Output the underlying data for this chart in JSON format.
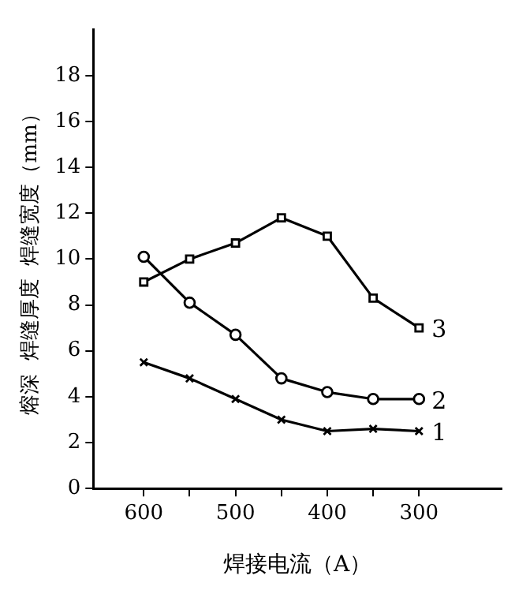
{
  "chart_data": {
    "type": "line",
    "xlabel": "焊接电流（A）",
    "ylabel": "熔深  焊缝厚度  焊缝宽度（mm）",
    "x": [
      600,
      550,
      500,
      450,
      400,
      350,
      300
    ],
    "xlim": [
      655,
      210
    ],
    "xticks": [
      600,
      {
        "value": 550,
        "label": null
      },
      500,
      {
        "value": 450,
        "label": null
      },
      400,
      {
        "value": 350,
        "label": null
      },
      300
    ],
    "ylim": [
      0,
      20
    ],
    "yticks": [
      0,
      2,
      4,
      6,
      8,
      10,
      12,
      14,
      16,
      18
    ],
    "grid": false,
    "legend": false,
    "line_style": "solid",
    "series": [
      {
        "name": "1",
        "color": "#000000",
        "marker": "cross",
        "values": [
          5.5,
          4.8,
          3.9,
          3.0,
          2.5,
          2.6,
          2.5
        ]
      },
      {
        "name": "2",
        "color": "#000000",
        "marker": "circle",
        "values": [
          10.1,
          8.1,
          6.7,
          4.8,
          4.2,
          3.9,
          3.9
        ]
      },
      {
        "name": "3",
        "color": "#000000",
        "marker": "square",
        "values": [
          9.0,
          10.0,
          10.7,
          11.8,
          11.0,
          8.3,
          7.0
        ]
      }
    ]
  }
}
